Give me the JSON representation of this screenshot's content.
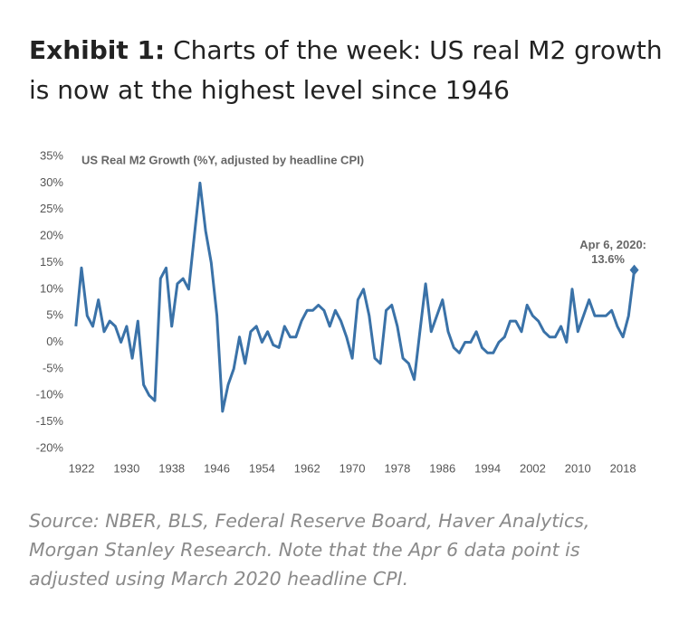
{
  "chart_data": {
    "type": "line",
    "title_label": "Exhibit 1:",
    "title": "Charts of the week: US real M2 growth is now at the highest level since 1946",
    "subtitle": "US Real M2 Growth (%Y, adjusted by headline CPI)",
    "source": "Source: NBER, BLS, Federal Reserve Board, Haver Analytics, Morgan Stanley Research. Note that the Apr 6 data point is adjusted using March 2020 headline CPI.",
    "annotation": {
      "text": "Apr 6, 2020:",
      "value_label": "13.6%"
    },
    "x": [
      1921,
      1922,
      1923,
      1924,
      1925,
      1926,
      1927,
      1928,
      1929,
      1930,
      1931,
      1932,
      1933,
      1934,
      1935,
      1936,
      1937,
      1938,
      1939,
      1940,
      1941,
      1942,
      1943,
      1944,
      1945,
      1946,
      1947,
      1948,
      1949,
      1950,
      1951,
      1952,
      1953,
      1954,
      1955,
      1956,
      1957,
      1958,
      1959,
      1960,
      1961,
      1962,
      1963,
      1964,
      1965,
      1966,
      1967,
      1968,
      1969,
      1970,
      1971,
      1972,
      1973,
      1974,
      1975,
      1976,
      1977,
      1978,
      1979,
      1980,
      1981,
      1982,
      1983,
      1984,
      1985,
      1986,
      1987,
      1988,
      1989,
      1990,
      1991,
      1992,
      1993,
      1994,
      1995,
      1996,
      1997,
      1998,
      1999,
      2000,
      2001,
      2002,
      2003,
      2004,
      2005,
      2006,
      2007,
      2008,
      2009,
      2010,
      2011,
      2012,
      2013,
      2014,
      2015,
      2016,
      2017,
      2018,
      2019,
      2020
    ],
    "series": [
      {
        "name": "US Real M2 Growth",
        "color": "#3a72a8",
        "values": [
          3,
          14,
          5,
          3,
          8,
          2,
          4,
          3,
          0,
          3,
          -3,
          4,
          -8,
          -10,
          -11,
          12,
          14,
          3,
          11,
          12,
          10,
          20,
          30,
          21,
          15,
          5,
          -13,
          -8,
          -5,
          1,
          -4,
          2,
          3,
          0,
          2,
          -0.5,
          -1,
          3,
          1,
          1,
          4,
          6,
          6,
          7,
          6,
          3,
          6,
          4,
          1,
          -3,
          8,
          10,
          5,
          -3,
          -4,
          6,
          7,
          3,
          -3,
          -4,
          -7,
          2,
          11,
          2,
          5,
          8,
          2,
          -1,
          -2,
          0,
          0,
          2,
          -1,
          -2,
          -2,
          0,
          1,
          4,
          4,
          2,
          7,
          5,
          4,
          2,
          1,
          1,
          3,
          0,
          10,
          2,
          5,
          8,
          5,
          5,
          5,
          6,
          3,
          1,
          5,
          13.6
        ]
      }
    ],
    "xlim": [
      1921,
      2021
    ],
    "xticks": [
      1922,
      1930,
      1938,
      1946,
      1954,
      1962,
      1970,
      1978,
      1986,
      1994,
      2002,
      2010,
      2018
    ],
    "ylim": [
      -20,
      35
    ],
    "yticks": [
      {
        "value": -20,
        "label": "-20%"
      },
      {
        "value": -15,
        "label": "-15%"
      },
      {
        "value": -10,
        "label": "-10%"
      },
      {
        "value": -5,
        "label": "-5%"
      },
      {
        "value": 0,
        "label": "0%"
      },
      {
        "value": 5,
        "label": "5%"
      },
      {
        "value": 10,
        "label": "10%"
      },
      {
        "value": 15,
        "label": "15%"
      },
      {
        "value": 20,
        "label": "20%"
      },
      {
        "value": 25,
        "label": "25%"
      },
      {
        "value": 30,
        "label": "30%"
      },
      {
        "value": 35,
        "label": "35%"
      }
    ],
    "grid": false
  }
}
